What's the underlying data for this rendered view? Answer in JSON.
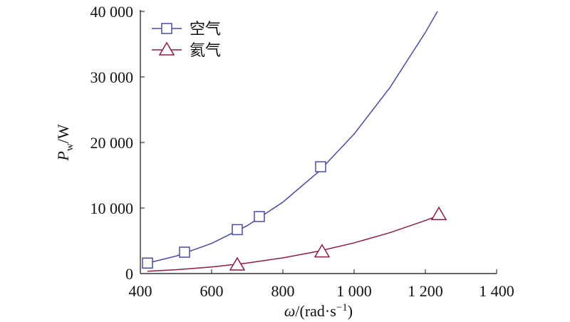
{
  "chart_data": {
    "type": "line",
    "xlabel": {
      "symbol": "ω",
      "text": "/(rad·s",
      "superscript": "−1",
      "close": ")"
    },
    "ylabel": {
      "symbol": "P",
      "subscript": "w",
      "unit": "/W"
    },
    "xlim": [
      400,
      1400
    ],
    "xticks": [
      400,
      600,
      800,
      {
        "value": 1000,
        "label": "1 000"
      },
      {
        "value": 1200,
        "label": "1 200"
      },
      {
        "value": 1400,
        "label": "1 400"
      }
    ],
    "ylim": [
      0,
      40000
    ],
    "yticks": [
      0,
      {
        "value": 10000,
        "label": "10 000"
      },
      {
        "value": 20000,
        "label": "20 000"
      },
      {
        "value": 30000,
        "label": "30 000"
      },
      {
        "value": 40000,
        "label": "40 000"
      }
    ],
    "legend": "upper left",
    "series": [
      {
        "name": "空气",
        "color": "#4b4b9c",
        "marker": "square",
        "x": [
          420,
          524,
          672,
          734,
          906
        ],
        "values": [
          1600,
          3260,
          6700,
          8700,
          16300
        ],
        "fit": {
          "x": [
            416,
            500,
            600,
            700,
            800,
            900,
            1000,
            1100,
            1200,
            1234
          ],
          "values": [
            1533,
            2661,
            4599,
            7302,
            10900,
            15520,
            21290,
            28340,
            36790,
            40000
          ]
        }
      },
      {
        "name": "氦气",
        "color": "#8b1c4a",
        "marker": "triangle",
        "x": [
          672,
          910,
          1238
        ],
        "values": [
          1300,
          3300,
          9000
        ],
        "fit": {
          "x": [
            420,
            500,
            600,
            700,
            800,
            900,
            1000,
            1100,
            1200,
            1234
          ],
          "values": [
            347,
            585,
            1011,
            1605,
            2396,
            3412,
            4680,
            6229,
            8087,
            8800
          ]
        }
      }
    ]
  }
}
